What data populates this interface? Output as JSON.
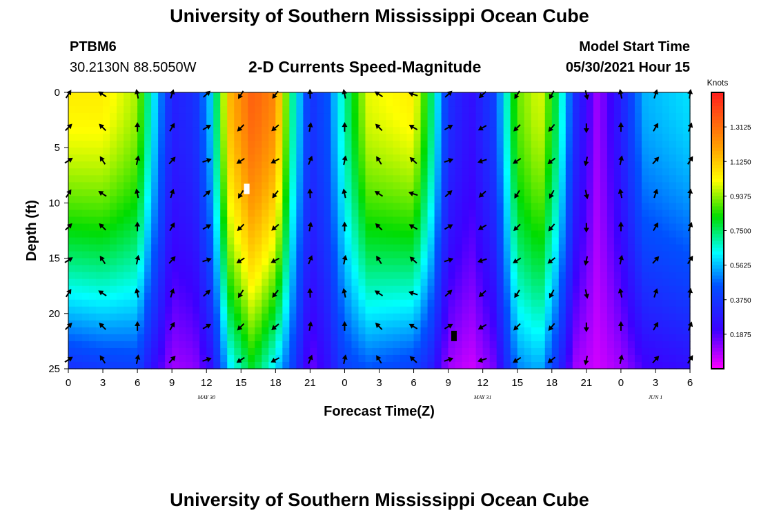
{
  "header": {
    "title": "University of Southern Mississippi Ocean Cube",
    "station_id": "PTBM6",
    "coords": "30.2130N  88.5050W",
    "subtitle": "2-D Currents Speed-Magnitude",
    "model_start_label": "Model Start Time",
    "model_start_value": "05/30/2021 Hour 15"
  },
  "footer": {
    "title": "University of Southern Mississippi Ocean Cube"
  },
  "chart_data": {
    "type": "heatmap",
    "title": "2-D Currents Speed-Magnitude",
    "xlabel": "Forecast Time(Z)",
    "ylabel": "Depth (ft)",
    "colorbar_label": "Knots",
    "x_hours_range": [
      0,
      54
    ],
    "ylim": [
      0,
      25
    ],
    "x_ticks": [
      "0",
      "3",
      "6",
      "9",
      "12",
      "15",
      "18",
      "21",
      "0",
      "3",
      "6",
      "9",
      "12",
      "15",
      "18",
      "21",
      "0",
      "3",
      "6"
    ],
    "y_ticks": [
      "0",
      "5",
      "10",
      "15",
      "20",
      "25"
    ],
    "date_labels": [
      {
        "text": "MAY 30",
        "hour": 12
      },
      {
        "text": "MAY 31",
        "hour": 36
      },
      {
        "text": "JUN 1",
        "hour": 51
      }
    ],
    "colorbar_ticks": [
      "1.3125",
      "1.1250",
      "0.9375",
      "0.7500",
      "0.5625",
      "0.3750",
      "0.1875"
    ],
    "colorbar_range": [
      0,
      1.5
    ],
    "speed_profile_by_hour": [
      {
        "hour": 0,
        "top": 1.05,
        "bottom": 0.35
      },
      {
        "hour": 3,
        "top": 1.05,
        "bottom": 0.38
      },
      {
        "hour": 6,
        "top": 0.95,
        "bottom": 0.4
      },
      {
        "hour": 7,
        "top": 0.7,
        "bottom": 0.28
      },
      {
        "hour": 9,
        "top": 0.3,
        "bottom": 0.1
      },
      {
        "hour": 11,
        "top": 0.35,
        "bottom": 0.12
      },
      {
        "hour": 12.5,
        "top": 0.6,
        "bottom": 0.25
      },
      {
        "hour": 14,
        "top": 1.15,
        "bottom": 0.6
      },
      {
        "hour": 16,
        "top": 1.35,
        "bottom": 0.8
      },
      {
        "hour": 18,
        "top": 1.25,
        "bottom": 0.6
      },
      {
        "hour": 19.5,
        "top": 0.7,
        "bottom": 0.4
      },
      {
        "hour": 21,
        "top": 0.35,
        "bottom": 0.15
      },
      {
        "hour": 22.5,
        "top": 0.45,
        "bottom": 0.25
      },
      {
        "hour": 24,
        "top": 0.7,
        "bottom": 0.4
      },
      {
        "hour": 26,
        "top": 1.0,
        "bottom": 0.45
      },
      {
        "hour": 30,
        "top": 1.05,
        "bottom": 0.4
      },
      {
        "hour": 31.5,
        "top": 0.75,
        "bottom": 0.3
      },
      {
        "hour": 33,
        "top": 0.35,
        "bottom": 0.1
      },
      {
        "hour": 35,
        "top": 0.25,
        "bottom": 0.05
      },
      {
        "hour": 37,
        "top": 0.4,
        "bottom": 0.15
      },
      {
        "hour": 39,
        "top": 0.9,
        "bottom": 0.5
      },
      {
        "hour": 41,
        "top": 1.0,
        "bottom": 0.55
      },
      {
        "hour": 42.5,
        "top": 0.75,
        "bottom": 0.35
      },
      {
        "hour": 44,
        "top": 0.35,
        "bottom": 0.1
      },
      {
        "hour": 46,
        "top": 0.1,
        "bottom": 0.05
      },
      {
        "hour": 48,
        "top": 0.3,
        "bottom": 0.1
      },
      {
        "hour": 50,
        "top": 0.55,
        "bottom": 0.2
      },
      {
        "hour": 54,
        "top": 0.6,
        "bottom": 0.25
      }
    ],
    "vector_hours": [
      0,
      3,
      6,
      9,
      12,
      15,
      18,
      21,
      24,
      27,
      30,
      33,
      36,
      39,
      42,
      45,
      48,
      51,
      54
    ],
    "vector_depths": [
      0,
      3,
      6,
      9,
      12,
      15,
      18,
      21,
      24
    ],
    "vector_direction_by_hour_deg": [
      45,
      315,
      0,
      30,
      60,
      225,
      230,
      10,
      0,
      315,
      300,
      60,
      240,
      225,
      220,
      180,
      0,
      30,
      20
    ],
    "markers": [
      {
        "hour": 15.5,
        "depth": 8.7,
        "color": "#ffffff"
      },
      {
        "hour": 33.5,
        "depth": 22,
        "color": "#000000"
      }
    ]
  }
}
